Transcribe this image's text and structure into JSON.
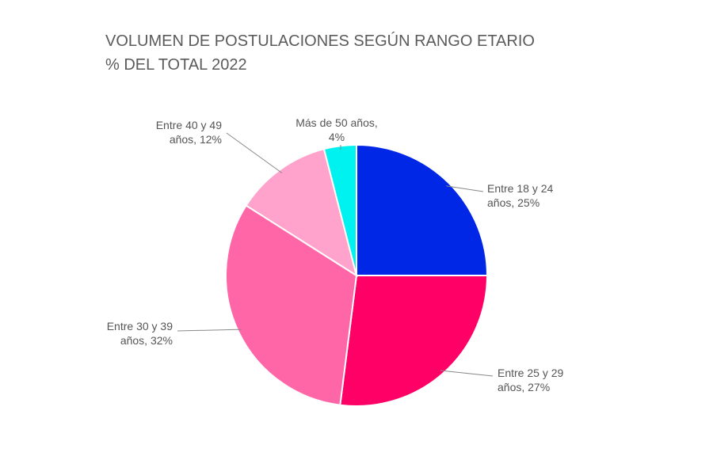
{
  "chart_data": {
    "type": "pie",
    "title": "VOLUMEN DE POSTULACIONES SEGÚN RANGO ETARIO",
    "subtitle": "% DEL TOTAL 2022",
    "values": [
      25,
      27,
      32,
      12,
      4
    ],
    "value_labels": [
      "Entre 18 y 24 años, 25%",
      "Entre 25 y 29 años, 27%",
      "Entre 30 y 39 años, 32%",
      "Entre 40 y 49 años, 12%",
      "Más de 50 años, 4%"
    ],
    "colors": [
      "#0026e6",
      "#ff0066",
      "#ff66a8",
      "#ffa3cc",
      "#00f2f0"
    ]
  }
}
